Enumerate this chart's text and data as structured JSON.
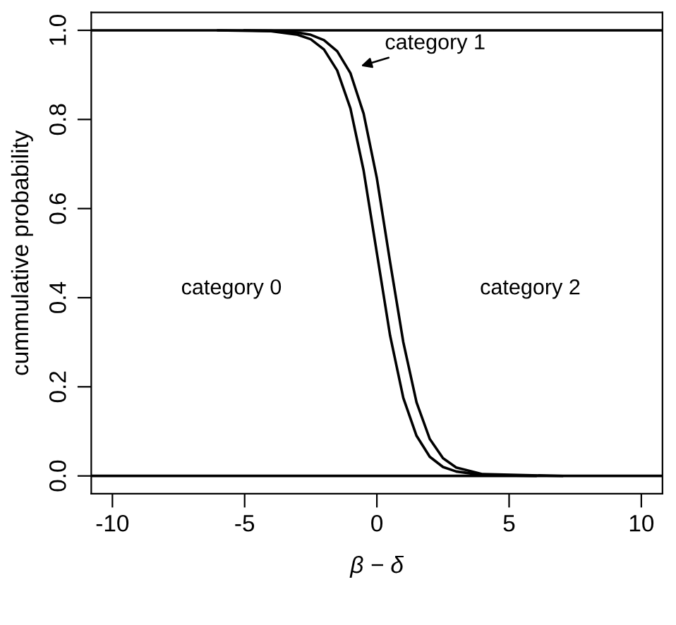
{
  "chart_data": {
    "type": "line",
    "xlabel": "β − δ",
    "ylabel": "cummulative probability",
    "xlim": [
      -10.8,
      10.8
    ],
    "ylim": [
      -0.04,
      1.04
    ],
    "xticks": [
      -10,
      -5,
      0,
      5,
      10
    ],
    "yticks": [
      {
        "value": 0,
        "label": "0.0"
      },
      {
        "value": 0.2,
        "label": "0.2"
      },
      {
        "value": 0.4,
        "label": "0.4"
      },
      {
        "value": 0.6,
        "label": "0.6"
      },
      {
        "value": 0.8,
        "label": "0.8"
      },
      {
        "value": 1,
        "label": "1.0"
      }
    ],
    "grid": false,
    "marker": "none",
    "line_style": "solid",
    "series": [
      {
        "color": "#000000",
        "x": [
          -6,
          -4,
          -3,
          -2.5,
          -2,
          -1.5,
          -1,
          -0.5,
          0,
          0.5,
          1,
          1.5,
          2,
          2.5,
          3,
          4,
          6
        ],
        "values": [
          1,
          0.998,
          0.99,
          0.98,
          0.957,
          0.91,
          0.825,
          0.685,
          0.5,
          0.315,
          0.175,
          0.09,
          0.043,
          0.02,
          0.01,
          0.002,
          0
        ]
      },
      {
        "color": "#000000",
        "x": [
          -5,
          -4,
          -3,
          -2.5,
          -2,
          -1.5,
          -1,
          -0.5,
          0,
          0.5,
          1,
          1.5,
          2,
          2.5,
          3,
          4,
          7
        ],
        "values": [
          1,
          0.999,
          0.995,
          0.99,
          0.978,
          0.953,
          0.904,
          0.813,
          0.668,
          0.48,
          0.3,
          0.165,
          0.083,
          0.04,
          0.019,
          0.004,
          0
        ]
      }
    ],
    "ref_lines": [
      {
        "axis": "y",
        "value": 0,
        "color": "#000000"
      },
      {
        "axis": "y",
        "value": 1,
        "color": "#000000"
      }
    ],
    "annotations": [
      "category 0",
      "category 1",
      "category 2"
    ]
  }
}
